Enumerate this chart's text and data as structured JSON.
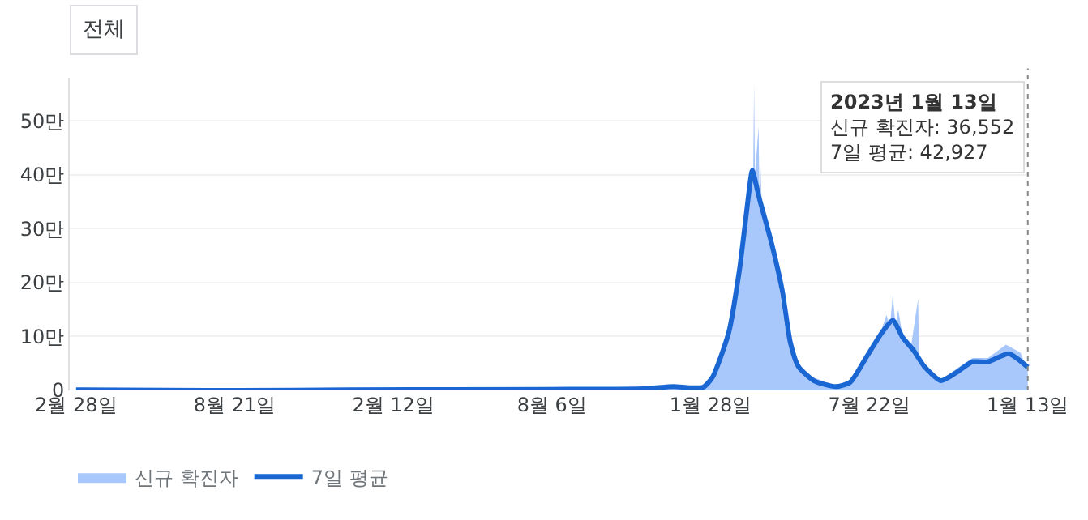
{
  "chart_data": {
    "type": "area",
    "xlim": [
      "2020-02-21",
      "2023-01-15"
    ],
    "xticks": [
      {
        "value": "2020-02-28",
        "label": "2월 28일"
      },
      {
        "value": "2020-08-21",
        "label": "8월 21일"
      },
      {
        "value": "2021-02-12",
        "label": "2월 12일"
      },
      {
        "value": "2021-08-06",
        "label": "8월 6일"
      },
      {
        "value": "2022-01-28",
        "label": "1월 28일"
      },
      {
        "value": "2022-07-22",
        "label": "7월 22일"
      },
      {
        "value": "2023-01-13",
        "label": "1월 13일"
      }
    ],
    "ylim": [
      0,
      58
    ],
    "yticks": [
      0,
      {
        "value": 10,
        "label": "10만"
      },
      {
        "value": 20,
        "label": "20만"
      },
      {
        "value": 30,
        "label": "30만"
      },
      {
        "value": 40,
        "label": "40만"
      },
      {
        "value": 50,
        "label": "50만"
      }
    ],
    "grid": "y",
    "legend": "bottom left",
    "series": [
      {
        "name": "신규 확진자",
        "color": "#a8c7fa",
        "x": [
          "2020-02-28",
          "2020-03-05",
          "2020-08-28",
          "2020-12-25",
          "2021-07-30",
          "2021-11-15",
          "2021-12-18",
          "2022-01-05",
          "2022-01-20",
          "2022-01-30",
          "2022-02-17",
          "2022-02-23",
          "2022-03-08",
          "2022-03-16",
          "2022-03-17",
          "2022-03-18",
          "2022-03-22",
          "2022-03-23",
          "2022-03-24",
          "2022-03-26",
          "2022-04-05",
          "2022-04-12",
          "2022-04-20",
          "2022-04-26",
          "2022-05-03",
          "2022-05-20",
          "2022-06-15",
          "2022-07-05",
          "2022-07-20",
          "2022-08-02",
          "2022-08-10",
          "2022-08-14",
          "2022-08-17",
          "2022-08-20",
          "2022-08-23",
          "2022-08-28",
          "2022-09-06",
          "2022-09-14",
          "2022-09-15",
          "2022-09-25",
          "2022-10-10",
          "2022-10-26",
          "2022-11-13",
          "2022-11-30",
          "2022-12-20",
          "2023-01-05",
          "2023-01-13"
        ],
        "values": [
          0.1,
          0.1,
          0,
          0.1,
          0.2,
          0.3,
          0.7,
          0.5,
          0.6,
          2.5,
          12,
          17,
          34,
          40,
          57,
          40,
          49,
          35,
          42,
          32,
          27,
          21,
          12,
          9,
          5,
          2.5,
          0.8,
          1.8,
          7,
          10,
          14,
          12,
          17.8,
          12,
          15,
          10,
          8,
          17,
          5,
          3,
          1.8,
          4,
          6,
          6,
          8.5,
          7,
          3.7
        ]
      },
      {
        "name": "7일 평균",
        "type": "line",
        "color": "#1a66d2",
        "x": [
          "2020-02-28",
          "2020-03-05",
          "2020-08-28",
          "2020-12-25",
          "2021-07-30",
          "2021-11-15",
          "2021-12-18",
          "2022-01-05",
          "2022-01-20",
          "2022-01-30",
          "2022-02-17",
          "2022-03-01",
          "2022-03-13",
          "2022-03-15",
          "2022-03-23",
          "2022-04-05",
          "2022-04-17",
          "2022-04-26",
          "2022-05-05",
          "2022-05-22",
          "2022-06-15",
          "2022-07-01",
          "2022-07-19",
          "2022-08-05",
          "2022-08-17",
          "2022-08-28",
          "2022-09-09",
          "2022-09-21",
          "2022-10-09",
          "2022-10-26",
          "2022-11-13",
          "2022-11-30",
          "2022-12-23",
          "2023-01-13"
        ],
        "values": [
          0.1,
          0.1,
          0,
          0.1,
          0.2,
          0.3,
          0.7,
          0.5,
          0.6,
          2.4,
          10.7,
          22.5,
          39,
          40.8,
          35.5,
          27.5,
          18.6,
          8.9,
          4.4,
          1.8,
          0.7,
          1.5,
          6.2,
          10.7,
          13,
          9.8,
          7.4,
          4.4,
          1.8,
          3.3,
          5.3,
          5.3,
          6.8,
          4.3
        ]
      }
    ],
    "ref_lines": [
      {
        "axis": "x",
        "value": "2023-01-13",
        "color": "#888888",
        "line_style": "dotted"
      }
    ],
    "annotations": [
      "전체",
      "2023년 1월 13일\n신규 확진자: 36,552\n7일 평균: 42,927"
    ]
  }
}
